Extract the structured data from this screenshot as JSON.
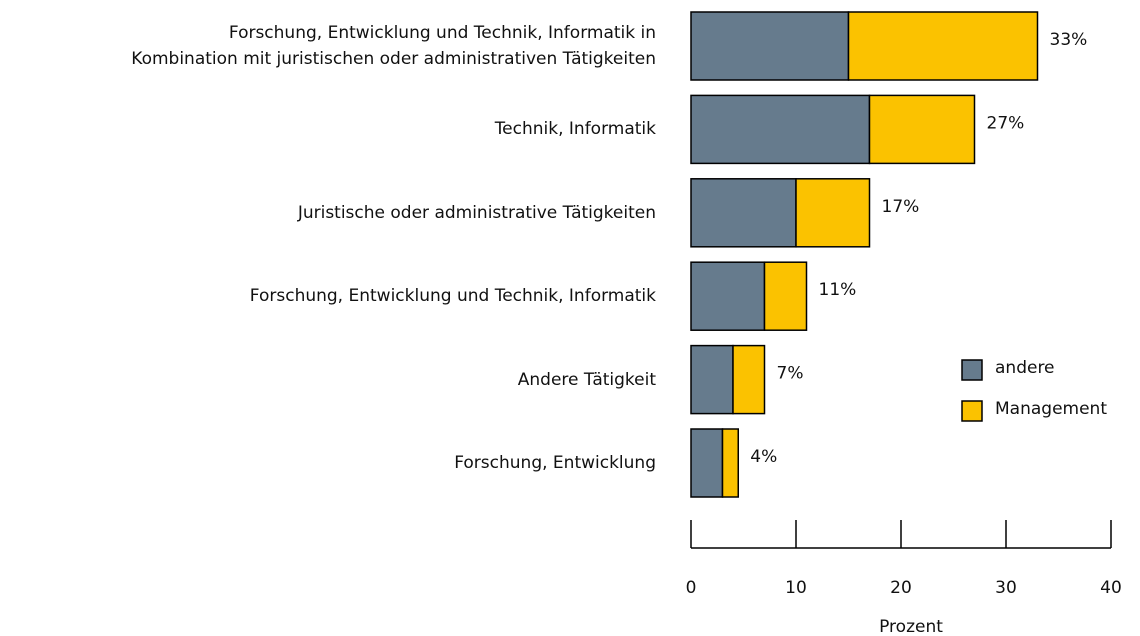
{
  "chart_data": {
    "type": "stacked-bar-horizontal",
    "categories": [
      "Forschung, Entwicklung und Technik, Informatik in\nKombination mit juristischen oder administrativen Tätigkeiten",
      "Technik, Informatik",
      "Juristische oder administrative Tätigkeiten",
      "Forschung, Entwicklung und Technik, Informatik",
      "Andere Tätigkeit",
      "Forschung, Entwicklung"
    ],
    "series": [
      {
        "name": "andere",
        "color": "#667b8d",
        "values": [
          15,
          17,
          10,
          7,
          4,
          3
        ]
      },
      {
        "name": "Management",
        "color": "#fbc200",
        "values": [
          18,
          10,
          7,
          4,
          3,
          1.5
        ]
      }
    ],
    "totals": [
      33,
      27,
      17,
      11,
      7,
      4
    ],
    "total_labels": [
      "33%",
      "27%",
      "17%",
      "11%",
      "7%",
      "4%"
    ],
    "xlabel": "Prozent",
    "xlim": [
      0,
      40
    ],
    "xticks": [
      0,
      10,
      20,
      30,
      40
    ],
    "legend": "right"
  }
}
